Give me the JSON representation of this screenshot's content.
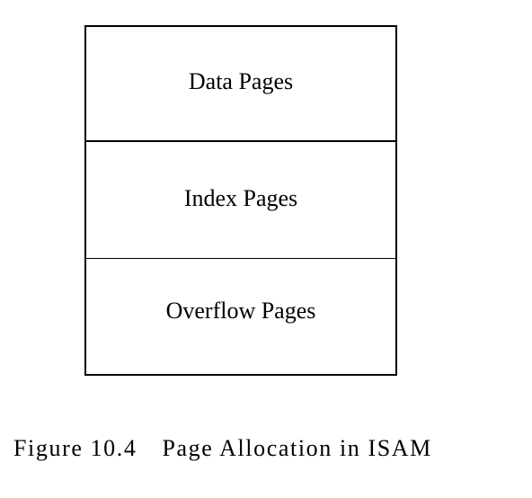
{
  "diagram": {
    "sections": [
      {
        "label": "Data Pages"
      },
      {
        "label": "Index Pages"
      },
      {
        "label": "Overflow Pages"
      }
    ]
  },
  "caption": {
    "number": "Figure 10.4",
    "text": "Page Allocation in ISAM"
  }
}
